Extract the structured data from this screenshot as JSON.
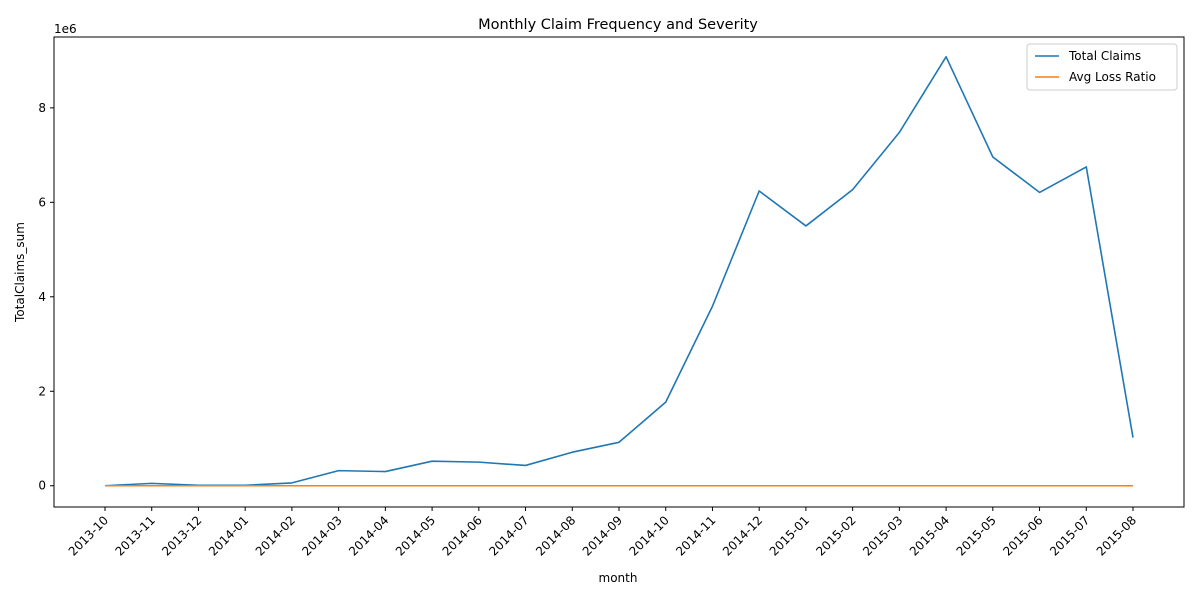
{
  "chart_data": {
    "type": "line",
    "title": "Monthly Claim Frequency and Severity",
    "xlabel": "month",
    "ylabel": "TotalClaims_sum",
    "y_offset_label": "1e6",
    "y_scale_factor": 1000000,
    "ylim": [
      -0.45,
      9.5
    ],
    "yticks": [
      0,
      2,
      4,
      6,
      8
    ],
    "grid": false,
    "legend_position": "top-right",
    "categories": [
      "2013-10",
      "2013-11",
      "2013-12",
      "2014-01",
      "2014-02",
      "2014-03",
      "2014-04",
      "2014-05",
      "2014-06",
      "2014-07",
      "2014-08",
      "2014-09",
      "2014-10",
      "2014-11",
      "2014-12",
      "2015-01",
      "2015-02",
      "2015-03",
      "2015-04",
      "2015-05",
      "2015-06",
      "2015-07",
      "2015-08"
    ],
    "series": [
      {
        "name": "Total Claims",
        "color": "#1f77b4",
        "values": [
          0.0,
          0.05,
          0.01,
          0.01,
          0.06,
          0.32,
          0.3,
          0.52,
          0.5,
          0.43,
          0.71,
          0.92,
          1.77,
          3.8,
          6.24,
          5.5,
          6.27,
          7.48,
          9.08,
          6.96,
          6.21,
          6.75,
          1.02
        ]
      },
      {
        "name": "Avg Loss Ratio",
        "color": "#ff7f0e",
        "values": [
          0,
          0,
          0,
          0,
          0,
          0,
          0,
          0,
          0,
          0,
          0,
          0,
          0,
          0,
          0,
          0,
          0,
          0,
          0,
          0,
          0,
          0,
          0
        ]
      }
    ]
  }
}
